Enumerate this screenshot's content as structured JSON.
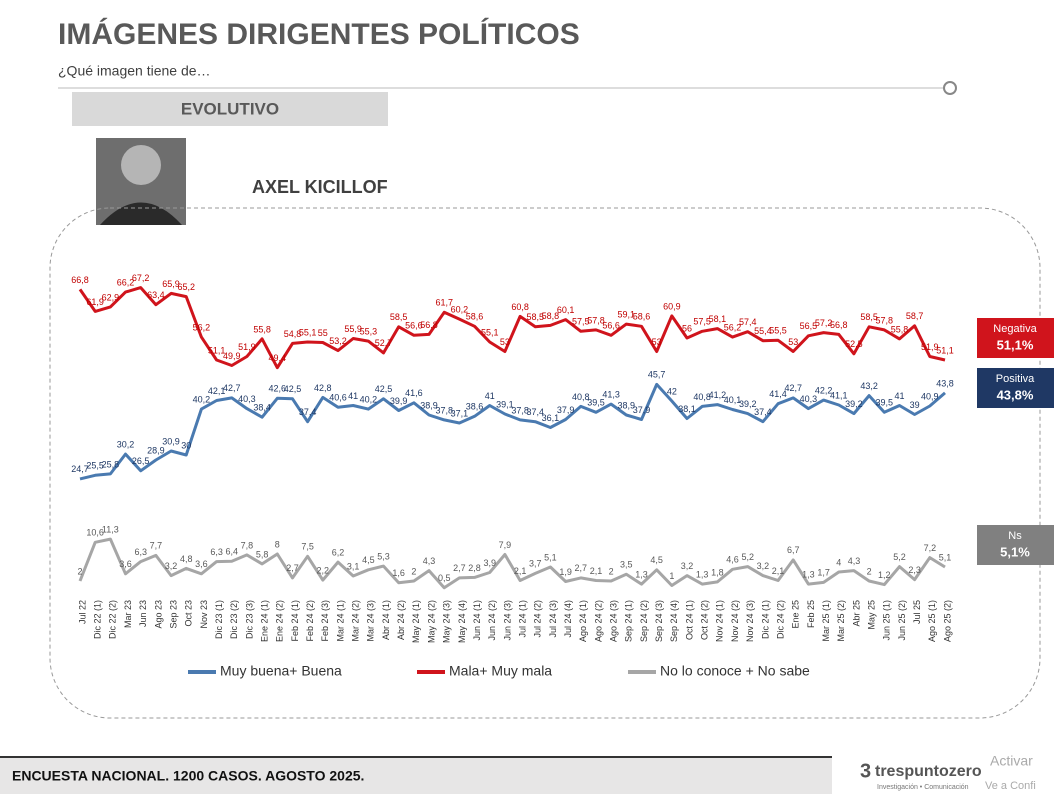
{
  "header": {
    "title": "IMÁGENES DIRIGENTES POLÍTICOS",
    "subtitle": "¿Qué imagen tiene de…",
    "section": "EVOLUTIVO",
    "person": "AXEL KICILLOF"
  },
  "footer": {
    "survey": "ENCUESTA NACIONAL. 1200 CASOS. AGOSTO 2025.",
    "brand": "trespuntozero",
    "tagline": "Investigación • Comunicación",
    "watermark1": "Activar",
    "watermark2": "Ve a Confi"
  },
  "chart_data": {
    "type": "line",
    "categories": [
      "Jul 22",
      "Dic 22 (1)",
      "Dic 22 (2)",
      "Mar 23",
      "Jun 23",
      "Ago 23",
      "Sep 23",
      "Oct 23",
      "Nov 23",
      "Dic 23 (1)",
      "Dic 23 (2)",
      "Dic 23 (3)",
      "Ene 24 (1)",
      "Ene 24 (2)",
      "Feb 24 (1)",
      "Feb 24 (2)",
      "Feb 24 (3)",
      "Mar 24 (1)",
      "Mar 24 (2)",
      "Mar 24 (3)",
      "Abr 24 (1)",
      "Abr 24 (2)",
      "May 24 (1)",
      "May 24 (2)",
      "May 24 (3)",
      "May 24 (4)",
      "Jun 24 (1)",
      "Jun 24 (2)",
      "Jun 24 (3)",
      "Jul 24 (1)",
      "Jul 24 (2)",
      "Jul 24 (3)",
      "Jul 24 (4)",
      "Ago 24 (1)",
      "Ago 24 (2)",
      "Ago 24 (3)",
      "Sep 24 (1)",
      "Sep 24 (2)",
      "Sep 24 (3)",
      "Sep 24 (4)",
      "Oct 24 (1)",
      "Oct 24 (2)",
      "Nov 24 (1)",
      "Nov 24 (2)",
      "Nov 24 (3)",
      "Dic 24 (1)",
      "Dic 24 (2)",
      "Ene 25",
      "Feb 25",
      "Mar 25 (1)",
      "Mar 25 (2)",
      "Abr 25",
      "May 25",
      "Jun 25 (1)",
      "Jun 25 (2)",
      "Jul 25",
      "Ago 25 (1)",
      "Ago 25 (2)"
    ],
    "series": [
      {
        "name": "Muy buena+ Buena",
        "color": "#4a7ab0",
        "label_color": "#1f3864",
        "badge": {
          "title": "Positiva",
          "label": "43,8%",
          "color": "#1f3864"
        },
        "values": [
          24.7,
          25.5,
          25.8,
          30.2,
          26.5,
          28.9,
          30.9,
          30,
          40.2,
          42.1,
          42.7,
          40.3,
          38.4,
          42.6,
          42.5,
          37.4,
          42.8,
          40.6,
          41,
          40.2,
          42.5,
          39.9,
          41.6,
          38.9,
          37.8,
          37.1,
          38.6,
          41,
          39.1,
          37.8,
          37.4,
          36.1,
          37.9,
          40.8,
          39.5,
          41.3,
          38.9,
          37.9,
          45.7,
          42,
          38.1,
          40.8,
          41.2,
          40.1,
          39.2,
          37.4,
          41.4,
          42.7,
          40.3,
          42.2,
          41.1,
          39.2,
          43.2,
          39.5,
          41,
          39,
          40.9,
          43.8
        ],
        "value_labels": [
          "24,7",
          "25,5",
          "25,8",
          "30,2",
          "26,5",
          "28,9",
          "30,9",
          "30",
          "40,2",
          "42,1",
          "42,7",
          "40,3",
          "38,4",
          "42,6",
          "42,5",
          "37,4",
          "42,8",
          "40,6",
          "41",
          "40,2",
          "42,5",
          "39,9",
          "41,6",
          "38,9",
          "37,8",
          "37,1",
          "38,6",
          "41",
          "39,1",
          "37,8",
          "37,4",
          "36,1",
          "37,9",
          "40,8",
          "39,5",
          "41,3",
          "38,9",
          "37,9",
          "45,7",
          "42",
          "38,1",
          "40,8",
          "41,2",
          "40,1",
          "39,2",
          "37,4",
          "41,4",
          "42,7",
          "40,3",
          "42,2",
          "41,1",
          "39,2",
          "43,2",
          "39,5",
          "41",
          "39",
          "40,9",
          "43,8"
        ]
      },
      {
        "name": "Mala+ Muy mala",
        "color": "#d0141c",
        "label_color": "#c00000",
        "badge": {
          "title": "Negativa",
          "label": "51,1%",
          "color": "#d0141c"
        },
        "values": [
          66.8,
          61.9,
          62.9,
          66.2,
          67.2,
          63.4,
          65.9,
          65.2,
          56.2,
          51.1,
          49.9,
          51.9,
          55.8,
          49.4,
          54.8,
          55.1,
          55,
          53.2,
          55.9,
          55.3,
          52.7,
          58.5,
          56.6,
          56.8,
          61.7,
          60.2,
          58.6,
          55.1,
          53,
          60.8,
          58.5,
          58.8,
          60.1,
          57.5,
          57.8,
          56.6,
          59.1,
          58.6,
          53,
          60.9,
          56,
          57.5,
          58.1,
          56.2,
          57.4,
          55.4,
          55.5,
          53,
          56.5,
          57.2,
          56.8,
          52.5,
          58.5,
          57.8,
          55.8,
          58.7,
          51.9,
          51.1
        ],
        "value_labels": [
          "66,8",
          "61,9",
          "62,9",
          "66,2",
          "67,2",
          "63,4",
          "65,9",
          "65,2",
          "56,2",
          "51,1",
          "49,9",
          "51,9",
          "55,8",
          "49,4",
          "54,8",
          "55,1",
          "55",
          "53,2",
          "55,9",
          "55,3",
          "52,7",
          "58,5",
          "56,6",
          "56,8",
          "61,7",
          "60,2",
          "58,6",
          "55,1",
          "53",
          "60,8",
          "58,5",
          "58,8",
          "60,1",
          "57,5",
          "57,8",
          "56,6",
          "59,1",
          "58,6",
          "53",
          "60,9",
          "56",
          "57,5",
          "58,1",
          "56,2",
          "57,4",
          "55,4",
          "55,5",
          "53",
          "56,5",
          "57,2",
          "56,8",
          "52,5",
          "58,5",
          "57,8",
          "55,8",
          "58,7",
          "51,9",
          "51,1"
        ]
      },
      {
        "name": "No lo conoce + No sabe",
        "color": "#a6a6a6",
        "label_color": "#595959",
        "badge": {
          "title": "Ns",
          "label": "5,1%",
          "color": "#808080"
        },
        "values": [
          2,
          10.6,
          11.3,
          3.6,
          6.3,
          7.7,
          3.2,
          4.8,
          3.6,
          6.3,
          6.4,
          7.8,
          5.8,
          8,
          2.7,
          7.5,
          2.2,
          6.2,
          3.1,
          4.5,
          5.3,
          1.6,
          2,
          4.3,
          0.5,
          2.7,
          2.8,
          3.9,
          7.9,
          2.1,
          3.7,
          5.1,
          1.9,
          2.7,
          2.1,
          2,
          3.5,
          1.3,
          4.5,
          1,
          3.2,
          1.3,
          1.8,
          4.6,
          5.2,
          3.2,
          2.1,
          6.7,
          1.3,
          1.7,
          4,
          4.3,
          2,
          1.2,
          5.2,
          2.3,
          7.2,
          5.1
        ],
        "value_labels": [
          "2",
          "10,6",
          "11,3",
          "3,6",
          "6,3",
          "7,7",
          "3,2",
          "4,8",
          "3,6",
          "6,3",
          "6,4",
          "7,8",
          "5,8",
          "8",
          "2,7",
          "7,5",
          "2,2",
          "6,2",
          "3,1",
          "4,5",
          "5,3",
          "1,6",
          "2",
          "4,3",
          "0,5",
          "2,7",
          "2,8",
          "3,9",
          "7,9",
          "2,1",
          "3,7",
          "5,1",
          "1,9",
          "2,7",
          "2,1",
          "2",
          "3,5",
          "1,3",
          "4,5",
          "1",
          "3,2",
          "1,3",
          "1,8",
          "4,6",
          "5,2",
          "3,2",
          "2,1",
          "6,7",
          "1,3",
          "1,7",
          "4",
          "4,3",
          "2",
          "1,2",
          "5,2",
          "2,3",
          "7,2",
          "5,1"
        ]
      }
    ]
  }
}
